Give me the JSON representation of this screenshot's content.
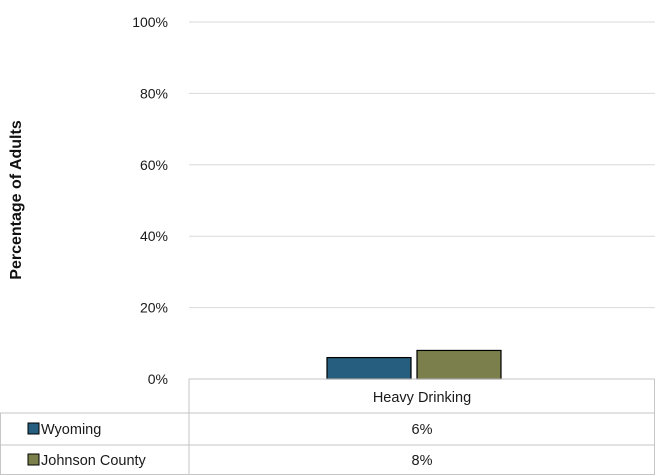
{
  "chart_data": {
    "type": "bar",
    "title": "",
    "xlabel": "",
    "ylabel": "Percentage of Adults",
    "ylim": [
      0,
      100
    ],
    "yticks": [
      0,
      20,
      40,
      60,
      80,
      100
    ],
    "ytick_labels": [
      "0%",
      "20%",
      "40%",
      "60%",
      "80%",
      "100%"
    ],
    "grid": true,
    "legend": "data table below chart",
    "categories": [
      "Heavy Drinking"
    ],
    "series": [
      {
        "name": "Wyoming",
        "values": [
          6
        ],
        "value_labels": [
          "6%"
        ],
        "color": "#255e7e"
      },
      {
        "name": "Johnson County",
        "values": [
          8
        ],
        "value_labels": [
          "8%"
        ],
        "color": "#7b7f4b"
      }
    ]
  }
}
